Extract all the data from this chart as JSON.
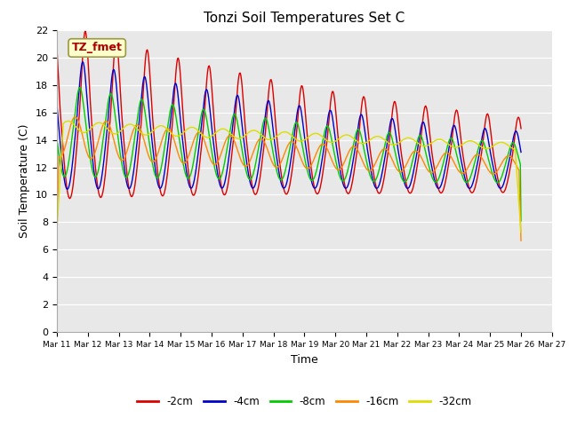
{
  "title": "Tonzi Soil Temperatures Set C",
  "xlabel": "Time",
  "ylabel": "Soil Temperature (C)",
  "ylim": [
    0,
    22
  ],
  "yticks": [
    0,
    2,
    4,
    6,
    8,
    10,
    12,
    14,
    16,
    18,
    20,
    22
  ],
  "series_colors": [
    "#dd0000",
    "#0000cc",
    "#00cc00",
    "#ff8800",
    "#dddd00"
  ],
  "series_labels": [
    "-2cm",
    "-4cm",
    "-8cm",
    "-16cm",
    "-32cm"
  ],
  "annotation_text": "TZ_fmet",
  "annotation_bg": "#ffffcc",
  "annotation_border": "#999944",
  "annotation_color": "#aa0000",
  "plot_bg": "#e8e8e8",
  "fig_bg": "#ffffff",
  "n_days": 15,
  "start_day": 11
}
